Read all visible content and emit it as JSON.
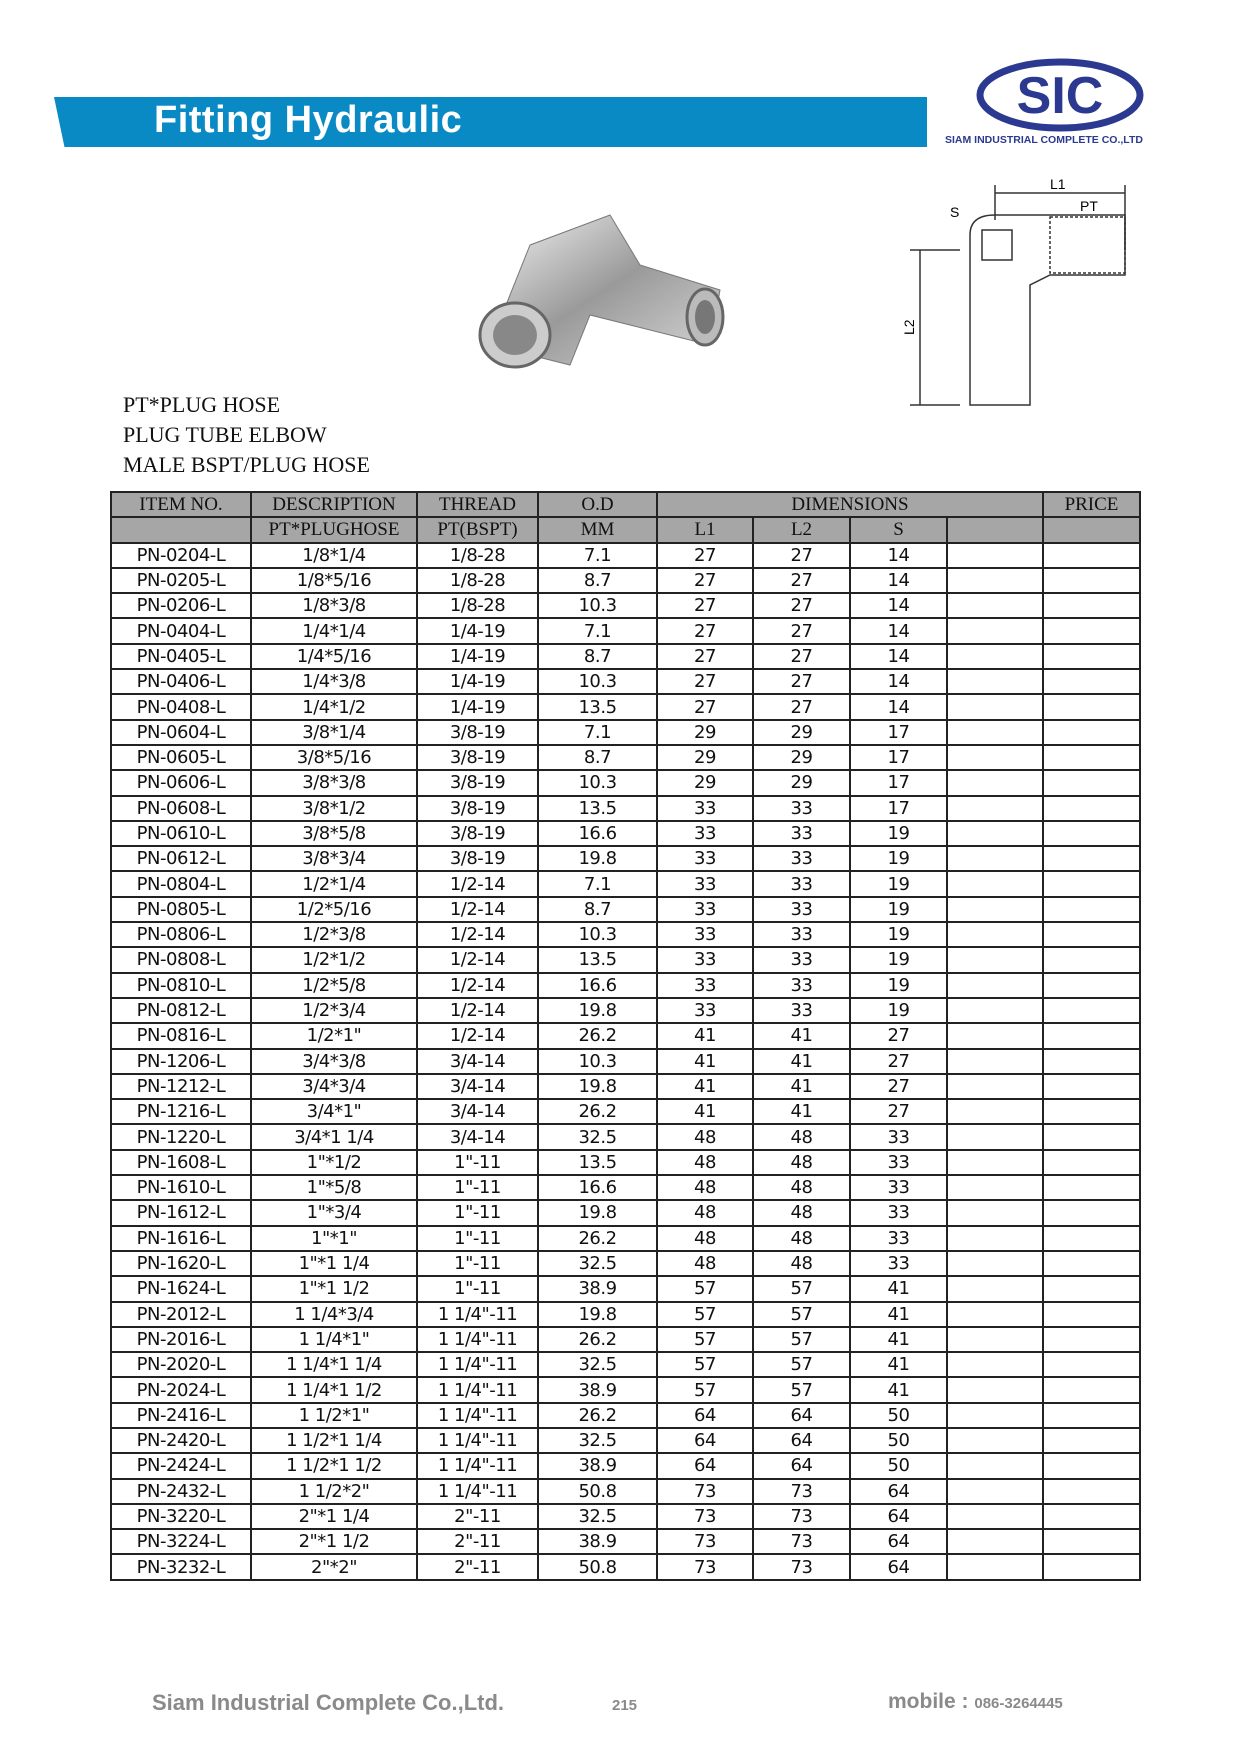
{
  "header": {
    "title": "Fitting Hydraulic",
    "logo_text": "SIC",
    "company": "SIAM INDUSTRIAL COMPLETE CO.,LTD",
    "brand_color": "#0a8ac4",
    "logo_color": "#2b3990"
  },
  "diagram": {
    "l1": "L1",
    "l2": "L2",
    "pt": "PT",
    "s": "S"
  },
  "product": {
    "lines": [
      "PT*PLUG HOSE",
      "PLUG TUBE ELBOW",
      "MALE BSPT/PLUG HOSE"
    ]
  },
  "table": {
    "header1": [
      "ITEM NO.",
      "DESCRIPTION",
      "THREAD",
      "O.D",
      "DIMENSIONS",
      "PRICE"
    ],
    "header2": [
      "",
      "PT*PLUGHOSE",
      "PT(BSPT)",
      "MM",
      "L1",
      "L2",
      "S",
      "",
      ""
    ],
    "rows": [
      [
        "PN-0204-L",
        "1/8*1/4",
        "1/8-28",
        "7.1",
        "27",
        "27",
        "14"
      ],
      [
        "PN-0205-L",
        "1/8*5/16",
        "1/8-28",
        "8.7",
        "27",
        "27",
        "14"
      ],
      [
        "PN-0206-L",
        "1/8*3/8",
        "1/8-28",
        "10.3",
        "27",
        "27",
        "14"
      ],
      [
        "PN-0404-L",
        "1/4*1/4",
        "1/4-19",
        "7.1",
        "27",
        "27",
        "14"
      ],
      [
        "PN-0405-L",
        "1/4*5/16",
        "1/4-19",
        "8.7",
        "27",
        "27",
        "14"
      ],
      [
        "PN-0406-L",
        "1/4*3/8",
        "1/4-19",
        "10.3",
        "27",
        "27",
        "14"
      ],
      [
        "PN-0408-L",
        "1/4*1/2",
        "1/4-19",
        "13.5",
        "27",
        "27",
        "14"
      ],
      [
        "PN-0604-L",
        "3/8*1/4",
        "3/8-19",
        "7.1",
        "29",
        "29",
        "17"
      ],
      [
        "PN-0605-L",
        "3/8*5/16",
        "3/8-19",
        "8.7",
        "29",
        "29",
        "17"
      ],
      [
        "PN-0606-L",
        "3/8*3/8",
        "3/8-19",
        "10.3",
        "29",
        "29",
        "17"
      ],
      [
        "PN-0608-L",
        "3/8*1/2",
        "3/8-19",
        "13.5",
        "33",
        "33",
        "17"
      ],
      [
        "PN-0610-L",
        "3/8*5/8",
        "3/8-19",
        "16.6",
        "33",
        "33",
        "19"
      ],
      [
        "PN-0612-L",
        "3/8*3/4",
        "3/8-19",
        "19.8",
        "33",
        "33",
        "19"
      ],
      [
        "PN-0804-L",
        "1/2*1/4",
        "1/2-14",
        "7.1",
        "33",
        "33",
        "19"
      ],
      [
        "PN-0805-L",
        "1/2*5/16",
        "1/2-14",
        "8.7",
        "33",
        "33",
        "19"
      ],
      [
        "PN-0806-L",
        "1/2*3/8",
        "1/2-14",
        "10.3",
        "33",
        "33",
        "19"
      ],
      [
        "PN-0808-L",
        "1/2*1/2",
        "1/2-14",
        "13.5",
        "33",
        "33",
        "19"
      ],
      [
        "PN-0810-L",
        "1/2*5/8",
        "1/2-14",
        "16.6",
        "33",
        "33",
        "19"
      ],
      [
        "PN-0812-L",
        "1/2*3/4",
        "1/2-14",
        "19.8",
        "33",
        "33",
        "19"
      ],
      [
        "PN-0816-L",
        "1/2*1\"",
        "1/2-14",
        "26.2",
        "41",
        "41",
        "27"
      ],
      [
        "PN-1206-L",
        "3/4*3/8",
        "3/4-14",
        "10.3",
        "41",
        "41",
        "27"
      ],
      [
        "PN-1212-L",
        "3/4*3/4",
        "3/4-14",
        "19.8",
        "41",
        "41",
        "27"
      ],
      [
        "PN-1216-L",
        "3/4*1\"",
        "3/4-14",
        "26.2",
        "41",
        "41",
        "27"
      ],
      [
        "PN-1220-L",
        "3/4*1 1/4",
        "3/4-14",
        "32.5",
        "48",
        "48",
        "33"
      ],
      [
        "PN-1608-L",
        "1\"*1/2",
        "1\"-11",
        "13.5",
        "48",
        "48",
        "33"
      ],
      [
        "PN-1610-L",
        "1\"*5/8",
        "1\"-11",
        "16.6",
        "48",
        "48",
        "33"
      ],
      [
        "PN-1612-L",
        "1\"*3/4",
        "1\"-11",
        "19.8",
        "48",
        "48",
        "33"
      ],
      [
        "PN-1616-L",
        "1\"*1\"",
        "1\"-11",
        "26.2",
        "48",
        "48",
        "33"
      ],
      [
        "PN-1620-L",
        "1\"*1 1/4",
        "1\"-11",
        "32.5",
        "48",
        "48",
        "33"
      ],
      [
        "PN-1624-L",
        "1\"*1 1/2",
        "1\"-11",
        "38.9",
        "57",
        "57",
        "41"
      ],
      [
        "PN-2012-L",
        "1 1/4*3/4",
        "1 1/4\"-11",
        "19.8",
        "57",
        "57",
        "41"
      ],
      [
        "PN-2016-L",
        "1 1/4*1\"",
        "1 1/4\"-11",
        "26.2",
        "57",
        "57",
        "41"
      ],
      [
        "PN-2020-L",
        "1 1/4*1 1/4",
        "1 1/4\"-11",
        "32.5",
        "57",
        "57",
        "41"
      ],
      [
        "PN-2024-L",
        "1 1/4*1 1/2",
        "1 1/4\"-11",
        "38.9",
        "57",
        "57",
        "41"
      ],
      [
        "PN-2416-L",
        "1 1/2*1\"",
        "1 1/4\"-11",
        "26.2",
        "64",
        "64",
        "50"
      ],
      [
        "PN-2420-L",
        "1 1/2*1 1/4",
        "1 1/4\"-11",
        "32.5",
        "64",
        "64",
        "50"
      ],
      [
        "PN-2424-L",
        "1 1/2*1 1/2",
        "1 1/4\"-11",
        "38.9",
        "64",
        "64",
        "50"
      ],
      [
        "PN-2432-L",
        "1 1/2*2\"",
        "1 1/4\"-11",
        "50.8",
        "73",
        "73",
        "64"
      ],
      [
        "PN-3220-L",
        "2\"*1 1/4",
        "2\"-11",
        "32.5",
        "73",
        "73",
        "64"
      ],
      [
        "PN-3224-L",
        "2\"*1 1/2",
        "2\"-11",
        "38.9",
        "73",
        "73",
        "64"
      ],
      [
        "PN-3232-L",
        "2\"*2\"",
        "2\"-11",
        "50.8",
        "73",
        "73",
        "64"
      ]
    ]
  },
  "footer": {
    "company": "Siam Industrial Complete Co.,Ltd.",
    "page": "215",
    "mobile_label": "mobile :",
    "mobile": "086-3264445"
  }
}
